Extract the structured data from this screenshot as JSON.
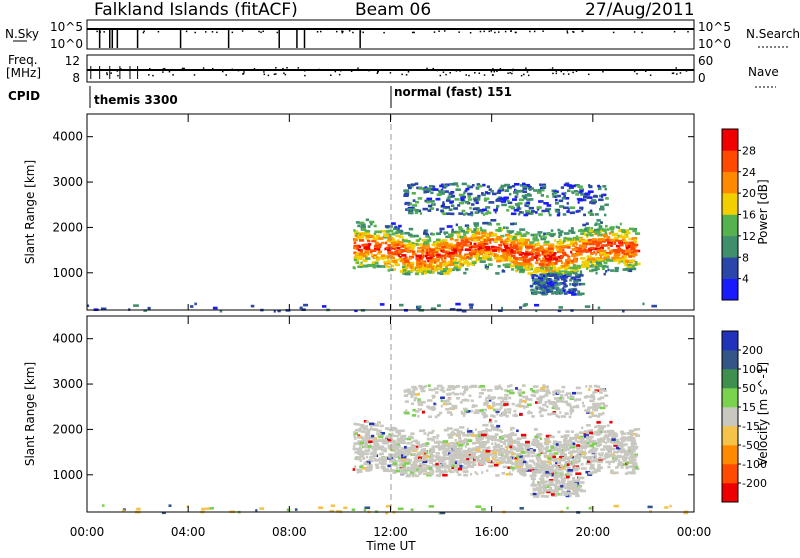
{
  "header": {
    "station": "Falkland Islands (fitACF)",
    "beam": "Beam 06",
    "date": "27/Aug/2011"
  },
  "strips": {
    "nsky_label": "N.Sky",
    "nsearch_label": "N.Search",
    "nsky_ticks": [
      "10^5",
      "10^0"
    ],
    "nsearch_ticks": [
      "10^5",
      "10^0"
    ],
    "freq_label_1": "Freq.",
    "freq_label_2": "[MHz]",
    "freq_ticks": [
      "12",
      "8"
    ],
    "nave_label": "Nave",
    "nave_ticks": [
      "60",
      "0"
    ],
    "cpid_label": "CPID",
    "cpid_segments": [
      {
        "text": "themis 3300"
      },
      {
        "text": "normal (fast) 151"
      }
    ]
  },
  "axes": {
    "y_label": "Slant Range [km]",
    "y_ticks": [
      "1000",
      "2000",
      "3000",
      "4000"
    ],
    "x_label": "Time UT",
    "x_ticks": [
      "00:00",
      "04:00",
      "08:00",
      "12:00",
      "16:00",
      "20:00",
      "00:00"
    ]
  },
  "power_bar": {
    "title": "Power [dB]",
    "labels": [
      "4",
      "8",
      "12",
      "16",
      "20",
      "24",
      "28"
    ],
    "colors": [
      "#1a1aff",
      "#2a46a8",
      "#3f8f6c",
      "#55b24f",
      "#f2d000",
      "#ff8a00",
      "#ff4a00",
      "#f00000"
    ]
  },
  "velocity_bar": {
    "title": "Velocity [m s^-1]",
    "labels": [
      "200",
      "100",
      "50",
      "15",
      "-15",
      "-50",
      "-100",
      "-200"
    ],
    "colors": [
      "#2233bb",
      "#335588",
      "#3f8f4f",
      "#7bd24f",
      "#c8c8c0",
      "#f6c34a",
      "#ff8a00",
      "#ff4a00",
      "#ee0000"
    ]
  },
  "chart_data": {
    "type": "heatmap",
    "title": "Falkland Islands (fitACF) Beam 06 27/Aug/2011",
    "xlabel": "Time UT",
    "ylabel": "Slant Range [km]",
    "xlim": [
      "00:00",
      "24:00"
    ],
    "ylim": [
      180,
      4500
    ],
    "panels": [
      {
        "name": "Power [dB]",
        "scale": [
          0,
          30
        ],
        "echo_regions": [
          {
            "t_start": "10:30",
            "t_end": "21:40",
            "range_km": [
              1000,
              2300
            ],
            "peak_range_km": 1500,
            "peak_value": 28
          },
          {
            "t_start": "12:30",
            "t_end": "20:30",
            "range_km": [
              2300,
              3000
            ],
            "peak_value": 12
          },
          {
            "t_start": "17:30",
            "t_end": "19:30",
            "range_km": [
              550,
              1000
            ],
            "peak_value": 10
          },
          {
            "t_start": "00:00",
            "t_end": "24:00",
            "range_km": [
              180,
              350
            ],
            "peak_value": 8
          }
        ]
      },
      {
        "name": "Velocity [m s^-1]",
        "scale": [
          -250,
          250
        ],
        "echo_regions": [
          {
            "t_start": "10:30",
            "t_end": "21:40",
            "range_km": [
              1000,
              2300
            ],
            "typical_value": 0
          },
          {
            "t_start": "12:30",
            "t_end": "20:30",
            "range_km": [
              2300,
              3000
            ],
            "typical_value": 0
          },
          {
            "t_start": "17:30",
            "t_end": "19:30",
            "range_km": [
              550,
              1000
            ],
            "typical_value": 0
          }
        ]
      }
    ],
    "cpid_changes": [
      {
        "time": "00:00",
        "program": "themis 3300"
      },
      {
        "time": "12:00",
        "program": "normal (fast) 151"
      }
    ]
  }
}
